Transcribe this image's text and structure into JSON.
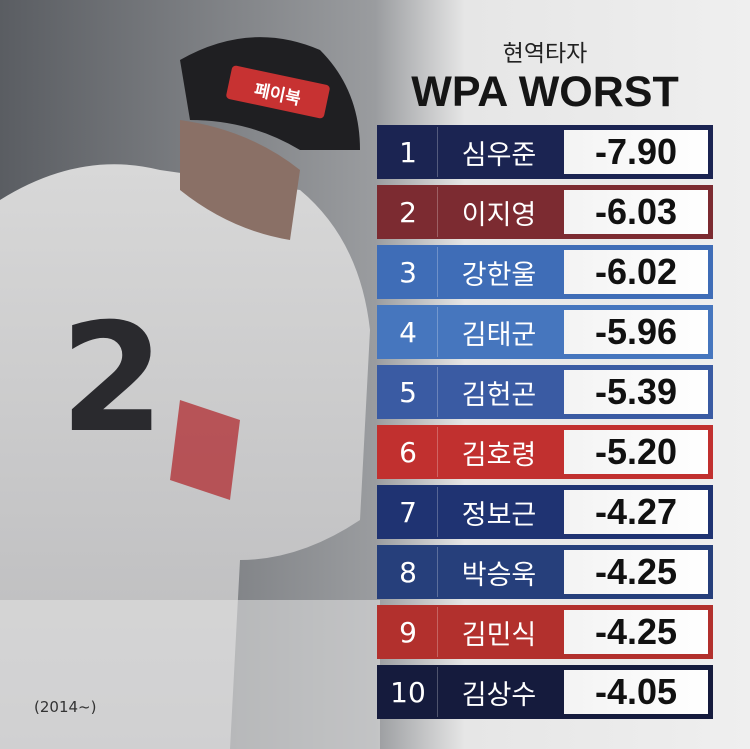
{
  "header": {
    "subtitle": "현역타자",
    "title": "WPA WORST"
  },
  "table": {
    "rows": [
      [
        "1",
        "심우준",
        "-7.90"
      ],
      [
        "2",
        "이지영",
        "-6.03"
      ],
      [
        "3",
        "강한울",
        "-6.02"
      ],
      [
        "4",
        "김태군",
        "-5.96"
      ],
      [
        "5",
        "김헌곤",
        "-5.39"
      ],
      [
        "6",
        "김호령",
        "-5.20"
      ],
      [
        "7",
        "정보근",
        "-4.27"
      ],
      [
        "8",
        "박승욱",
        "-4.25"
      ],
      [
        "9",
        "김민식",
        "-4.25"
      ],
      [
        "10",
        "김상수",
        "-4.05"
      ]
    ]
  },
  "photo": {
    "helmet_text": "페이북",
    "jersey_number": "2"
  },
  "footnote": "(2014~)"
}
